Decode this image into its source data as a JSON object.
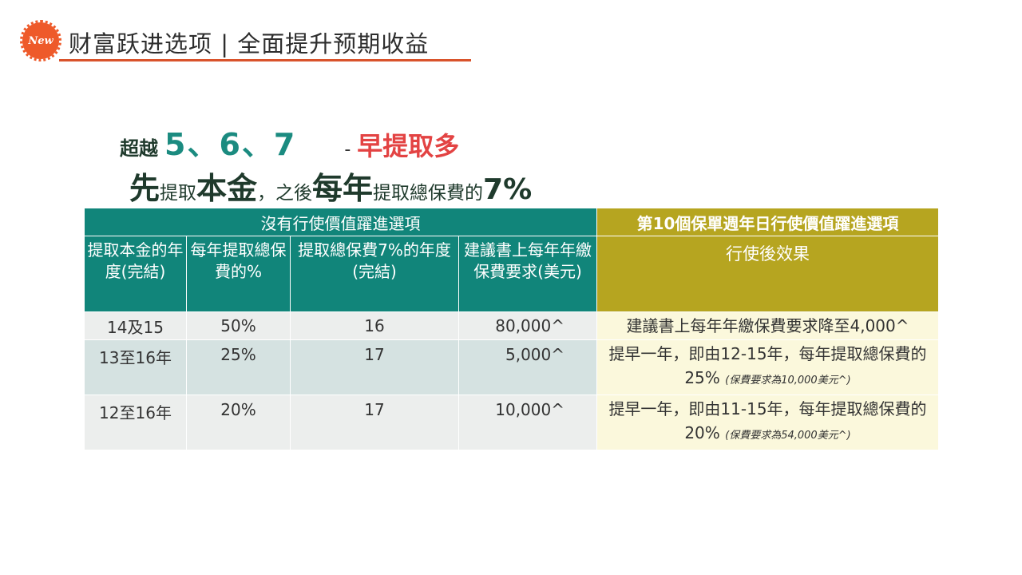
{
  "header": {
    "badge": "New",
    "title": "财富跃进选项 | 全面提升预期收益"
  },
  "headline1": {
    "prefix": "超越",
    "numbers": "5、6、7",
    "dash": "-",
    "highlight": "早提取多"
  },
  "headline2": {
    "part1": "先",
    "part2": "提取",
    "part3": "本金",
    "part4": "，之後",
    "part5": "每年",
    "part6": "提取總保費的",
    "part7": "7%"
  },
  "table": {
    "left_group": "沒有行使價值躍進選項",
    "right_group": "第10個保單週年日行使價值躍進選項",
    "col1": "提取本金的年度(完結)",
    "col2": "每年提取總保費的%",
    "col3": "提取總保費7%的年度(完結)",
    "col4": "建議書上每年年繳保費要求(美元)",
    "col5": "行使後效果",
    "rows": [
      {
        "year": "14及15",
        "pct": "50%",
        "end": "16",
        "premium": "80,000^",
        "effect": "建議書上每年年繳保費要求降至4,000^",
        "note": ""
      },
      {
        "year": "13至16年",
        "pct": "25%",
        "end": "17",
        "premium": "5,000^",
        "effect": "提早一年，即由12-15年，每年提取總保費的25%",
        "note": "(保費要求為10,000美元^)"
      },
      {
        "year": "12至16年",
        "pct": "20%",
        "end": "17",
        "premium": "10,000^",
        "effect": "提早一年，即由11-15年，每年提取總保費的20%",
        "note": "(保費要求為54,000美元^)"
      }
    ]
  }
}
